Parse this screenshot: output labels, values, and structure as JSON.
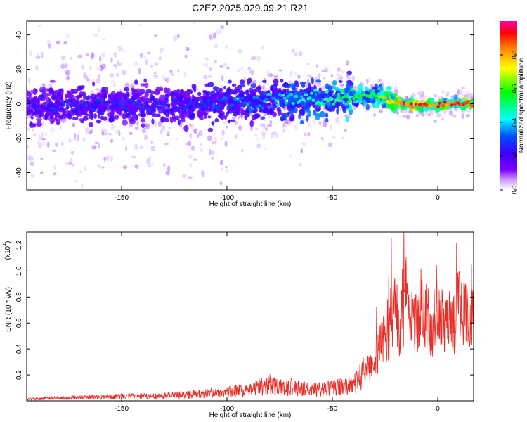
{
  "title": "C2E2.2025.029.09.21.R21",
  "chart_data": [
    {
      "type": "heatmap",
      "name": "spectrogram",
      "xlabel": "Height of straight line (km)",
      "ylabel": "Frequency (Hz)",
      "xlim": [
        -195,
        17
      ],
      "ylim": [
        -50,
        48
      ],
      "xticks": [
        -150,
        -100,
        -50,
        0
      ],
      "yticks": [
        -40,
        -20,
        0,
        20,
        40
      ],
      "colorbar": {
        "label": "Normalized spectral amplitude",
        "range": [
          0.0,
          1.0
        ],
        "ticks": [
          0.0,
          0.2,
          0.4,
          0.6,
          0.8
        ],
        "tick_labels": [
          "0.0",
          "0.2",
          "0.4",
          "0.6",
          "0.8"
        ],
        "colormap": "rainbow",
        "colors": [
          "#ffffff",
          "#cc99ff",
          "#7a00ff",
          "#3b00ff",
          "#0050ff",
          "#00ffff",
          "#00ff00",
          "#ffff00",
          "#ff8000",
          "#ff0000",
          "#ff00aa"
        ]
      },
      "ridge": {
        "x": [
          -195,
          -170,
          -150,
          -120,
          -100,
          -80,
          -60,
          -50,
          -40,
          -30,
          -25,
          -22,
          -18,
          -15,
          -10,
          -5,
          0,
          5,
          10,
          15
        ],
        "freq": [
          -2,
          -1,
          -1,
          0,
          1,
          2,
          3,
          3,
          4,
          5,
          3,
          1,
          1,
          0,
          -1,
          -1,
          -1,
          0,
          0,
          0
        ],
        "amplitude": [
          0.25,
          0.3,
          0.3,
          0.3,
          0.35,
          0.4,
          0.5,
          0.55,
          0.6,
          0.6,
          0.8,
          0.9,
          0.95,
          0.95,
          1.0,
          0.98,
          0.95,
          0.98,
          1.0,
          0.98
        ]
      }
    },
    {
      "type": "line",
      "name": "snr",
      "xlabel": "Height of straight line (km)",
      "ylabel": "SNR (10 * v/v)",
      "scale_label": "(x10",
      "scale_exp": "4",
      "xlim": [
        -195,
        17
      ],
      "ylim": [
        0,
        1.3
      ],
      "xticks": [
        -150,
        -100,
        -50,
        0
      ],
      "yticks": [
        0.2,
        0.4,
        0.6,
        0.8,
        1.0,
        1.2
      ],
      "ytick_labels": [
        "0.2",
        "0.4",
        "0.6",
        "0.8",
        "1.0",
        "1.2"
      ],
      "color": "#e8302a",
      "series": [
        {
          "x": [
            -195,
            -180,
            -165,
            -150,
            -140,
            -125,
            -110,
            -100,
            -90,
            -80,
            -70,
            -60,
            -50,
            -40,
            -35,
            -32,
            -30,
            -28,
            -25,
            -22,
            -20,
            -18,
            -15,
            -12,
            -10,
            -8,
            -5,
            -3,
            0,
            3,
            5,
            8,
            10,
            12,
            15,
            17
          ],
          "y": [
            0.02,
            0.03,
            0.04,
            0.05,
            0.05,
            0.06,
            0.08,
            0.1,
            0.12,
            0.18,
            0.15,
            0.12,
            0.14,
            0.18,
            0.3,
            0.4,
            0.35,
            0.55,
            0.7,
            0.85,
            1.0,
            0.8,
            1.2,
            0.9,
            0.85,
            0.95,
            0.9,
            0.8,
            1.0,
            0.8,
            0.85,
            0.9,
            1.1,
            0.9,
            0.95,
            0.85
          ],
          "peaks": [
            {
              "x": -29,
              "y": 0.72
            },
            {
              "x": -22,
              "y": 1.25
            },
            {
              "x": -16,
              "y": 1.3
            },
            {
              "x": -8,
              "y": 1.02
            },
            {
              "x": 9,
              "y": 1.22
            },
            {
              "x": 16,
              "y": 1.05
            }
          ]
        }
      ]
    }
  ]
}
